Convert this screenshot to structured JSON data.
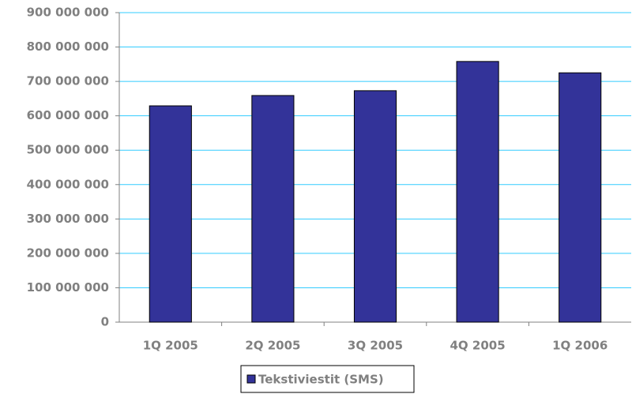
{
  "chart_data": {
    "type": "bar",
    "categories": [
      "1Q 2005",
      "2Q 2005",
      "3Q 2005",
      "4Q 2005",
      "1Q 2006"
    ],
    "series": [
      {
        "name": "Tekstiviestit (SMS)",
        "color": "#333399",
        "values": [
          629000000,
          659000000,
          673000000,
          758000000,
          725000000
        ]
      }
    ],
    "ylim": [
      0,
      900000000
    ],
    "yticks": [
      0,
      {
        "value": 100000000,
        "label": "100 000 000"
      },
      {
        "value": 200000000,
        "label": "200 000 000"
      },
      {
        "value": 300000000,
        "label": "300 000 000"
      },
      {
        "value": 400000000,
        "label": "400 000 000"
      },
      {
        "value": 500000000,
        "label": "500 000 000"
      },
      {
        "value": 600000000,
        "label": "600 000 000"
      },
      {
        "value": 700000000,
        "label": "700 000 000"
      },
      {
        "value": 800000000,
        "label": "800 000 000"
      },
      {
        "value": 900000000,
        "label": "900 000 000"
      }
    ],
    "grid": true,
    "legend": "bottom"
  }
}
